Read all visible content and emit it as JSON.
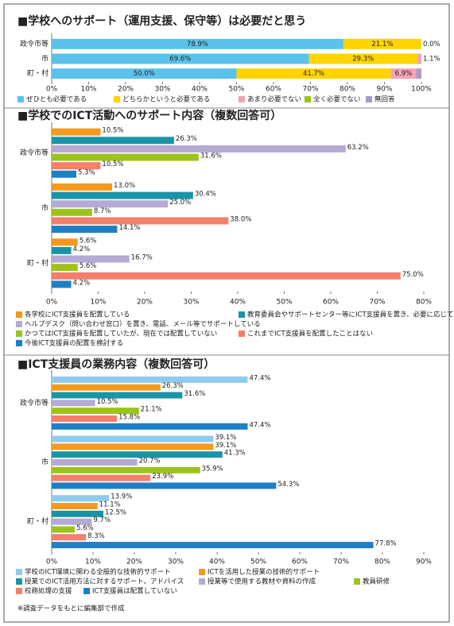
{
  "chart_data": [
    {
      "type": "bar",
      "stacked": true,
      "orientation": "horizontal",
      "title": "■学校へのサポート（運用支援、保守等）は必要だと思う",
      "categories": [
        "政令市等",
        "市",
        "町・村"
      ],
      "series": [
        {
          "name": "ぜひとも必要である",
          "color": "#5bc2ec",
          "values": [
            78.9,
            69.6,
            50.0
          ],
          "value_labels": [
            "78.9%",
            "69.6%",
            "50.0%"
          ]
        },
        {
          "name": "どちらかというと必要である",
          "color": "#ffd400",
          "values": [
            21.1,
            29.3,
            41.7
          ],
          "value_labels": [
            "21.1%",
            "29.3%",
            "41.7%"
          ]
        },
        {
          "name": "あまり必要でない",
          "color": "#f5a3b3",
          "values": [
            0.0,
            1.1,
            6.9
          ],
          "value_labels": [
            "0.0%",
            "1.1%",
            "6.9%"
          ]
        },
        {
          "name": "全く必要でない",
          "color": "#9cc31c",
          "values": [
            0,
            0,
            0
          ]
        },
        {
          "name": "無回答",
          "color": "#a99ac8",
          "values": [
            0,
            0,
            1.4
          ]
        }
      ],
      "xlim": [
        0,
        100
      ],
      "xticks": [
        {
          "value": 0,
          "label": "0%"
        },
        {
          "value": 10,
          "label": "10%"
        },
        {
          "value": 20,
          "label": "20%"
        },
        {
          "value": 30,
          "label": "30%"
        },
        {
          "value": 40,
          "label": "40%"
        },
        {
          "value": 50,
          "label": "50%"
        },
        {
          "value": 60,
          "label": "60%"
        },
        {
          "value": 70,
          "label": "70%"
        },
        {
          "value": 80,
          "label": "80%"
        },
        {
          "value": 90,
          "label": "90%"
        },
        {
          "value": 100,
          "label": "100%"
        }
      ]
    },
    {
      "type": "bar",
      "stacked": false,
      "orientation": "horizontal",
      "title": "■学校でのICT活動へのサポート内容（複数回答可）",
      "categories": [
        "政令市等",
        "市",
        "町・村"
      ],
      "series": [
        {
          "name": "各学校にICT支援員を配置している",
          "color": "#f39a1e",
          "values": [
            10.5,
            13.0,
            5.6
          ],
          "value_labels": [
            "10.5%",
            "13.0%",
            "5.6%"
          ]
        },
        {
          "name": "教育委員会やサポートセンター等にICT支援員を置き、必要に応じて学校に派遣している",
          "color": "#1b93a6",
          "values": [
            26.3,
            30.4,
            4.2
          ],
          "value_labels": [
            "26.3%",
            "30.4%",
            "4.2%"
          ]
        },
        {
          "name": "ヘルプデスク（問い合わせ窓口）を置き、電話、メール等でサポートしている",
          "color": "#b6a9d3",
          "values": [
            63.2,
            25.0,
            16.7
          ],
          "value_labels": [
            "63.2%",
            "25.0%",
            "16.7%"
          ]
        },
        {
          "name": "かつてはICT支援員を配置していたが、現在では配置していない",
          "color": "#9cc31c",
          "values": [
            31.6,
            8.7,
            5.6
          ],
          "value_labels": [
            "31.6%",
            "8.7%",
            "5.6%"
          ]
        },
        {
          "name": "これまでICT支援員を配置したことはない",
          "color": "#f47f6b",
          "values": [
            10.5,
            38.0,
            75.0
          ],
          "value_labels": [
            "10.5%",
            "38.0%",
            "75.0%"
          ]
        },
        {
          "name": "今後ICT支援員の配置を検討する",
          "color": "#1f7fc6",
          "values": [
            5.3,
            14.1,
            4.2
          ],
          "value_labels": [
            "5.3%",
            "14.1%",
            "4.2%"
          ]
        }
      ],
      "xlim": [
        0,
        80
      ],
      "xticks": [
        {
          "value": 0,
          "label": "0%"
        },
        {
          "value": 10,
          "label": "10%"
        },
        {
          "value": 20,
          "label": "20%"
        },
        {
          "value": 30,
          "label": "30%"
        },
        {
          "value": 40,
          "label": "40%"
        },
        {
          "value": 50,
          "label": "50%"
        },
        {
          "value": 60,
          "label": "60%"
        },
        {
          "value": 70,
          "label": "70%"
        },
        {
          "value": 80,
          "label": "80%"
        }
      ]
    },
    {
      "type": "bar",
      "stacked": false,
      "orientation": "horizontal",
      "title": "■ICT支援員の業務内容（複数回答可）",
      "categories": [
        "政令市等",
        "市",
        "町・村"
      ],
      "series": [
        {
          "name": "学校のICT環境に関わる全般的な技術的サポート",
          "color": "#8fcbec",
          "values": [
            47.4,
            39.1,
            13.9
          ],
          "value_labels": [
            "47.4%",
            "39.1%",
            "13.9%"
          ]
        },
        {
          "name": "ICTを活用した授業の技術的サポート",
          "color": "#f39a1e",
          "values": [
            26.3,
            39.1,
            11.1
          ],
          "value_labels": [
            "26.3%",
            "39.1%",
            "11.1%"
          ]
        },
        {
          "name": "授業でのICT活用方法に対するサポート、アドバイス",
          "color": "#1b93a6",
          "values": [
            31.6,
            41.3,
            12.5
          ],
          "value_labels": [
            "31.6%",
            "41.3%",
            "12.5%"
          ]
        },
        {
          "name": "授業等で使用する教材や資料の作成",
          "color": "#b6a9d3",
          "values": [
            10.5,
            20.7,
            9.7
          ],
          "value_labels": [
            "10.5%",
            "20.7%",
            "9.7%"
          ]
        },
        {
          "name": "教員研修",
          "color": "#9cc31c",
          "values": [
            21.1,
            35.9,
            5.6
          ],
          "value_labels": [
            "21.1%",
            "35.9%",
            "5.6%"
          ]
        },
        {
          "name": "校務処理の支援",
          "color": "#f47f6b",
          "values": [
            15.8,
            23.9,
            8.3
          ],
          "value_labels": [
            "15.8%",
            "23.9%",
            "8.3%"
          ]
        },
        {
          "name": "ICT支援員は配置していない",
          "color": "#1f7fc6",
          "values": [
            47.4,
            54.3,
            77.8
          ],
          "value_labels": [
            "47.4%",
            "54.3%",
            "77.8%"
          ]
        }
      ],
      "xlim": [
        0,
        90
      ],
      "xticks": [
        {
          "value": 0,
          "label": "0%"
        },
        {
          "value": 10,
          "label": "10%"
        },
        {
          "value": 20,
          "label": "20%"
        },
        {
          "value": 30,
          "label": "30%"
        },
        {
          "value": 40,
          "label": "40%"
        },
        {
          "value": 50,
          "label": "50%"
        },
        {
          "value": 60,
          "label": "60%"
        },
        {
          "value": 70,
          "label": "70%"
        },
        {
          "value": 80,
          "label": "80%"
        },
        {
          "value": 90,
          "label": "90%"
        }
      ]
    }
  ],
  "footnote": "※調査データをもとに編集部で作成"
}
